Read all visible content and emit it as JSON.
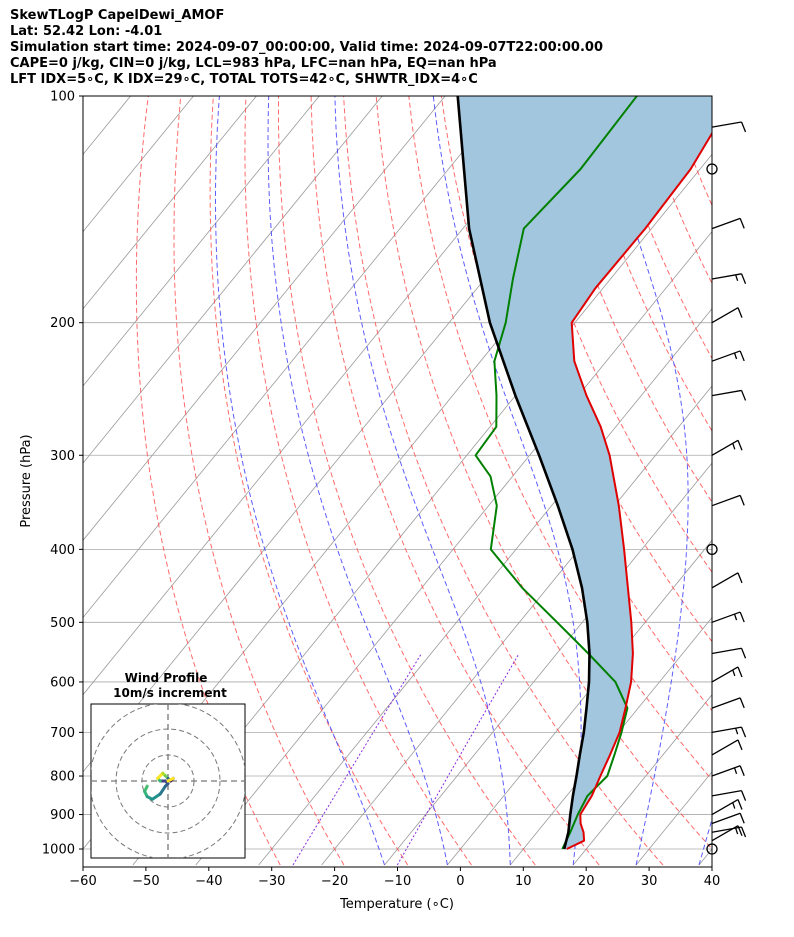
{
  "header": {
    "line1": "SkewTLogP CapelDewi_AMOF",
    "line2": "Lat: 52.42   Lon: -4.01",
    "line3": "Simulation start time: 2024-09-07_00:00:00, Valid time: 2024-09-07T22:00:00.00",
    "line4": "CAPE=0 j/kg, CIN=0 j/kg, LCL=983 hPa, LFC=nan hPa, EQ=nan hPa",
    "line5": "LFT IDX=5∘C, K IDX=29∘C, TOTAL TOTS=42∘C, SHWTR_IDX=4∘C"
  },
  "chart_data": [
    {
      "type": "line",
      "subtype": "skew-t log-p",
      "xlabel": "Temperature (∘C)",
      "ylabel": "Pressure (hPa)",
      "xlim": [
        -60,
        40
      ],
      "ylim": [
        1050,
        100
      ],
      "y_scale": "log",
      "x_ticks": [
        "−60",
        "−50",
        "−40",
        "−30",
        "−20",
        "−10",
        "0",
        "10",
        "20",
        "30",
        "40"
      ],
      "y_ticks": [
        "100",
        "200",
        "300",
        "400",
        "500",
        "600",
        "700",
        "800",
        "900",
        "1000"
      ],
      "grid": true,
      "colors": {
        "temperature": "#e00000",
        "dewpoint": "#008000",
        "parcel": "#000000",
        "shade": "#a3c6df",
        "dry_adiabats": "#ff5050",
        "moist_adiabats": "#4040ff",
        "mixing_ratio": "#8a2be2",
        "isotherms": "#9a9a9a"
      },
      "series": [
        {
          "name": "temperature",
          "points": [
            [
              1000,
              16.9
            ],
            [
              975,
              18.6
            ],
            [
              950,
              17.4
            ],
            [
              925,
              15.8
            ],
            [
              900,
              14.6
            ],
            [
              850,
              14.0
            ],
            [
              800,
              12.8
            ],
            [
              750,
              11.6
            ],
            [
              700,
              10.2
            ],
            [
              650,
              8.0
            ],
            [
              600,
              5.5
            ],
            [
              550,
              2.1
            ],
            [
              500,
              -2.2
            ],
            [
              450,
              -7.2
            ],
            [
              400,
              -12.8
            ],
            [
              350,
              -19.3
            ],
            [
              300,
              -27.3
            ],
            [
              275,
              -32.4
            ],
            [
              250,
              -38.7
            ],
            [
              225,
              -45.1
            ],
            [
              200,
              -50.5
            ],
            [
              180,
              -51.2
            ],
            [
              150,
              -51.0
            ],
            [
              125,
              -51.5
            ],
            [
              100,
              -54.0
            ]
          ]
        },
        {
          "name": "dewpoint",
          "points": [
            [
              1000,
              16.2
            ],
            [
              950,
              15.3
            ],
            [
              900,
              14.2
            ],
            [
              850,
              13.3
            ],
            [
              800,
              13.9
            ],
            [
              750,
              12.3
            ],
            [
              700,
              10.5
            ],
            [
              650,
              8.3
            ],
            [
              600,
              3.0
            ],
            [
              550,
              -5.0
            ],
            [
              500,
              -14.0
            ],
            [
              450,
              -24.0
            ],
            [
              400,
              -34.0
            ],
            [
              350,
              -38.7
            ],
            [
              320,
              -43.5
            ],
            [
              300,
              -48.6
            ],
            [
              275,
              -49.0
            ],
            [
              250,
              -53.0
            ],
            [
              225,
              -57.8
            ],
            [
              200,
              -61.0
            ],
            [
              175,
              -65.5
            ],
            [
              150,
              -70.3
            ],
            [
              125,
              -69.0
            ],
            [
              100,
              -69.5
            ]
          ]
        },
        {
          "name": "parcel",
          "points": [
            [
              1000,
              16.5
            ],
            [
              983,
              16.0
            ],
            [
              950,
              15.0
            ],
            [
              900,
              13.0
            ],
            [
              850,
              11.0
            ],
            [
              800,
              9.0
            ],
            [
              750,
              6.8
            ],
            [
              700,
              4.5
            ],
            [
              650,
              1.8
            ],
            [
              600,
              -1.2
            ],
            [
              550,
              -4.8
            ],
            [
              500,
              -9.2
            ],
            [
              450,
              -14.5
            ],
            [
              400,
              -21.0
            ],
            [
              350,
              -29.0
            ],
            [
              300,
              -38.5
            ],
            [
              250,
              -50.0
            ],
            [
              200,
              -63.5
            ],
            [
              150,
              -79.0
            ],
            [
              100,
              -98.0
            ]
          ]
        }
      ],
      "wind_barbs": [
        {
          "p": 1000,
          "kind": "calm"
        },
        {
          "p": 975,
          "kind": "barb"
        },
        {
          "p": 950,
          "kind": "barb"
        },
        {
          "p": 925,
          "kind": "barb"
        },
        {
          "p": 900,
          "kind": "barb"
        },
        {
          "p": 850,
          "kind": "barb"
        },
        {
          "p": 800,
          "kind": "barb"
        },
        {
          "p": 750,
          "kind": "barb"
        },
        {
          "p": 700,
          "kind": "barb"
        },
        {
          "p": 650,
          "kind": "barb"
        },
        {
          "p": 600,
          "kind": "barb"
        },
        {
          "p": 550,
          "kind": "barb"
        },
        {
          "p": 500,
          "kind": "barb"
        },
        {
          "p": 450,
          "kind": "barb"
        },
        {
          "p": 400,
          "kind": "calm"
        },
        {
          "p": 350,
          "kind": "barb"
        },
        {
          "p": 300,
          "kind": "barb"
        },
        {
          "p": 250,
          "kind": "barb"
        },
        {
          "p": 225,
          "kind": "barb"
        },
        {
          "p": 200,
          "kind": "barb"
        },
        {
          "p": 175,
          "kind": "barb"
        },
        {
          "p": 150,
          "kind": "barb"
        },
        {
          "p": 125,
          "kind": "calm"
        },
        {
          "p": 110,
          "kind": "barb"
        }
      ]
    },
    {
      "type": "line",
      "subtype": "hodograph",
      "title": "Wind Profile",
      "subtitle": "10m/s increment",
      "rings_ms": [
        10,
        20,
        30
      ],
      "colormap": "viridis",
      "points": [
        [
          -8,
          -2
        ],
        [
          -9,
          -4
        ],
        [
          -8,
          -6
        ],
        [
          -6,
          -7
        ],
        [
          -3,
          -5
        ],
        [
          -1,
          -2
        ],
        [
          0,
          -1
        ],
        [
          -1,
          0
        ],
        [
          -3,
          0
        ],
        [
          -4,
          1
        ],
        [
          -2,
          3
        ],
        [
          -1,
          2
        ],
        [
          0,
          1
        ],
        [
          1,
          0
        ],
        [
          2,
          1
        ],
        [
          0,
          0
        ]
      ]
    }
  ]
}
